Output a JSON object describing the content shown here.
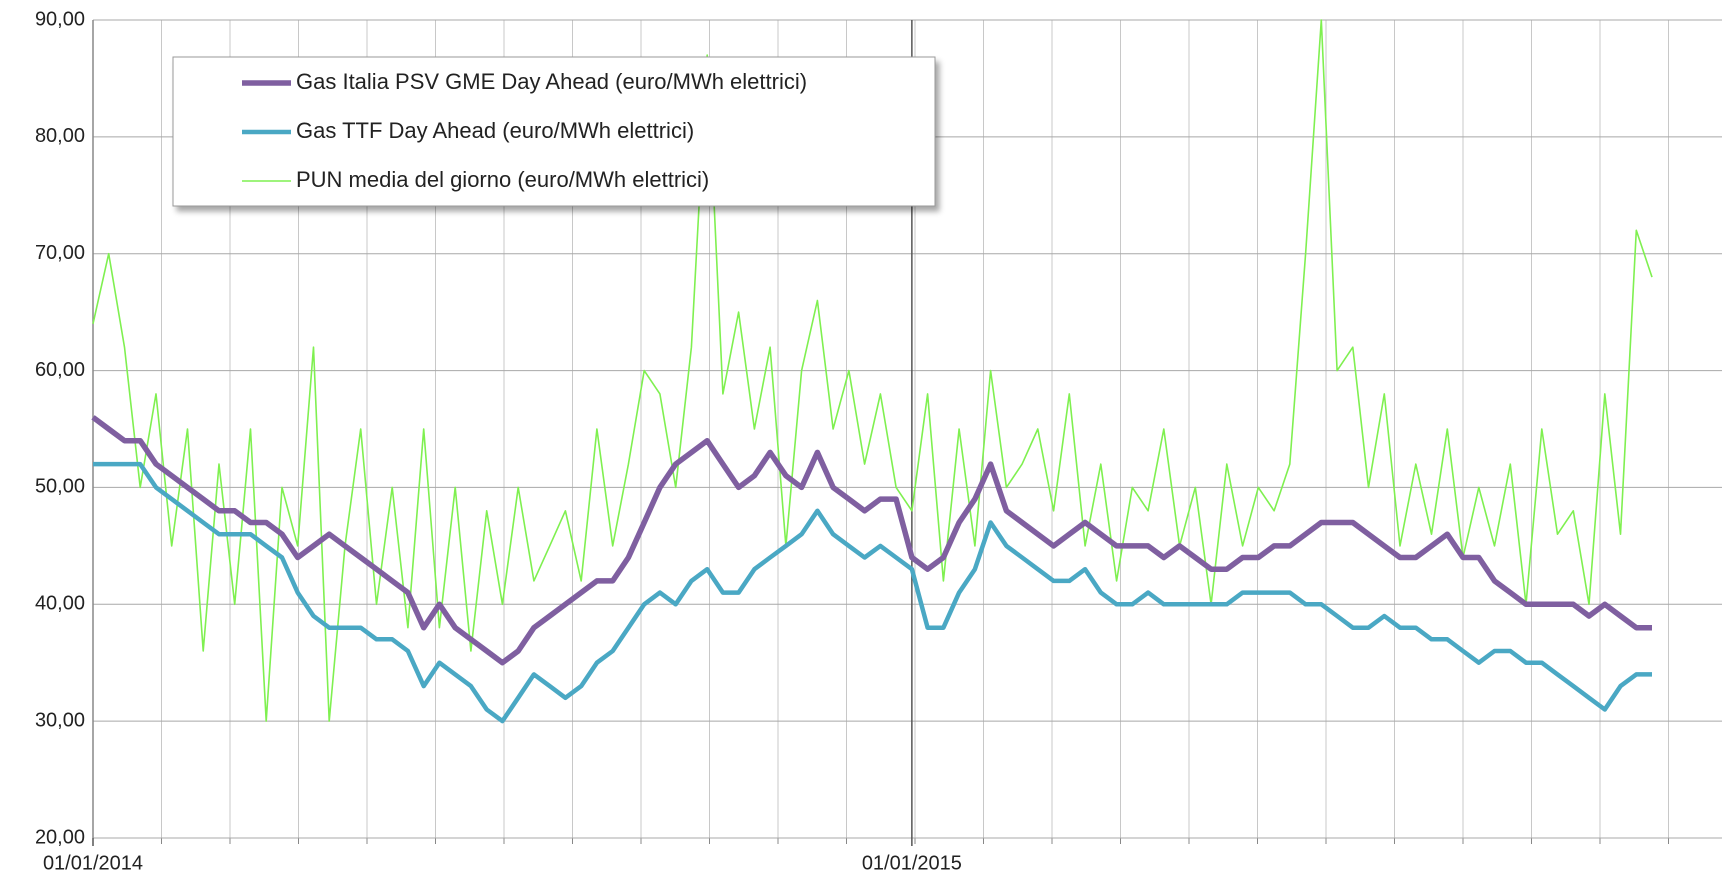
{
  "chart_data": {
    "type": "line",
    "categories": [
      "01/01/2014",
      null,
      null,
      null,
      null,
      null,
      null,
      null,
      null,
      null,
      null,
      null,
      null,
      null,
      null,
      null,
      null,
      null,
      null,
      null,
      null,
      null,
      null,
      null,
      null,
      null,
      null,
      null,
      null,
      null,
      null,
      null,
      null,
      null,
      null,
      null,
      null,
      null,
      null,
      null,
      null,
      null,
      null,
      null,
      null,
      null,
      null,
      null,
      null,
      null,
      null,
      null,
      "01/01/2015",
      null,
      null,
      null,
      null,
      null,
      null,
      null,
      null,
      null,
      null,
      null,
      null,
      null,
      null,
      null,
      null,
      null,
      null,
      null,
      null,
      null,
      null,
      null,
      null,
      null,
      null,
      null,
      null,
      null,
      null,
      null,
      null,
      null,
      null,
      null,
      null,
      null,
      null,
      null,
      null,
      null,
      null,
      null,
      null,
      null,
      null,
      null
    ],
    "series": [
      {
        "name": "Gas Italia PSV GME Day Ahead (euro/MWh elettrici)",
        "color": "#7f5fa0",
        "values": [
          56,
          55,
          54,
          54,
          52,
          51,
          50,
          49,
          48,
          48,
          47,
          47,
          46,
          44,
          45,
          46,
          45,
          44,
          43,
          42,
          41,
          38,
          40,
          38,
          37,
          36,
          35,
          36,
          38,
          39,
          40,
          41,
          42,
          42,
          44,
          47,
          50,
          52,
          53,
          54,
          52,
          50,
          51,
          53,
          51,
          50,
          53,
          50,
          49,
          48,
          49,
          49,
          44,
          43,
          44,
          47,
          49,
          52,
          48,
          47,
          46,
          45,
          46,
          47,
          46,
          45,
          45,
          45,
          44,
          45,
          44,
          43,
          43,
          44,
          44,
          45,
          45,
          46,
          47,
          47,
          47,
          46,
          45,
          44,
          44,
          45,
          46,
          44,
          44,
          42,
          41,
          40,
          40,
          40,
          40,
          39,
          40,
          39,
          38,
          38
        ]
      },
      {
        "name": "Gas TTF Day Ahead (euro/MWh elettrici)",
        "color": "#4aa8c4",
        "values": [
          52,
          52,
          52,
          52,
          50,
          49,
          48,
          47,
          46,
          46,
          46,
          45,
          44,
          41,
          39,
          38,
          38,
          38,
          37,
          37,
          36,
          33,
          35,
          34,
          33,
          31,
          30,
          32,
          34,
          33,
          32,
          33,
          35,
          36,
          38,
          40,
          41,
          40,
          42,
          43,
          41,
          41,
          43,
          44,
          45,
          46,
          48,
          46,
          45,
          44,
          45,
          44,
          43,
          38,
          38,
          41,
          43,
          47,
          45,
          44,
          43,
          42,
          42,
          43,
          41,
          40,
          40,
          41,
          40,
          40,
          40,
          40,
          40,
          41,
          41,
          41,
          41,
          40,
          40,
          39,
          38,
          38,
          39,
          38,
          38,
          37,
          37,
          36,
          35,
          36,
          36,
          35,
          35,
          34,
          33,
          32,
          31,
          33,
          34,
          34
        ]
      },
      {
        "name": "PUN media del giorno (euro/MWh elettrici)",
        "color": "#7ff050",
        "values": [
          64,
          70,
          62,
          50,
          58,
          45,
          55,
          36,
          52,
          40,
          55,
          30,
          50,
          45,
          62,
          30,
          45,
          55,
          40,
          50,
          38,
          55,
          38,
          50,
          36,
          48,
          40,
          50,
          42,
          45,
          48,
          42,
          55,
          45,
          52,
          60,
          58,
          50,
          62,
          87,
          58,
          65,
          55,
          62,
          45,
          60,
          66,
          55,
          60,
          52,
          58,
          50,
          48,
          58,
          42,
          55,
          45,
          60,
          50,
          52,
          55,
          48,
          58,
          45,
          52,
          42,
          50,
          48,
          55,
          45,
          50,
          40,
          52,
          45,
          50,
          48,
          52,
          70,
          90,
          60,
          62,
          50,
          58,
          45,
          52,
          46,
          55,
          44,
          50,
          45,
          52,
          40,
          55,
          46,
          48,
          40,
          58,
          46,
          72,
          68
        ]
      }
    ],
    "ylim": [
      20,
      90
    ],
    "yticks": [
      {
        "value": 20,
        "label": "20,00"
      },
      {
        "value": 30,
        "label": "30,00"
      },
      {
        "value": 40,
        "label": "40,00"
      },
      {
        "value": 50,
        "label": "50,00"
      },
      {
        "value": 60,
        "label": "60,00"
      },
      {
        "value": 70,
        "label": "70,00"
      },
      {
        "value": 80,
        "label": "80,00"
      },
      {
        "value": 90,
        "label": "90,00"
      }
    ],
    "grid": true,
    "legend": "top-left"
  }
}
